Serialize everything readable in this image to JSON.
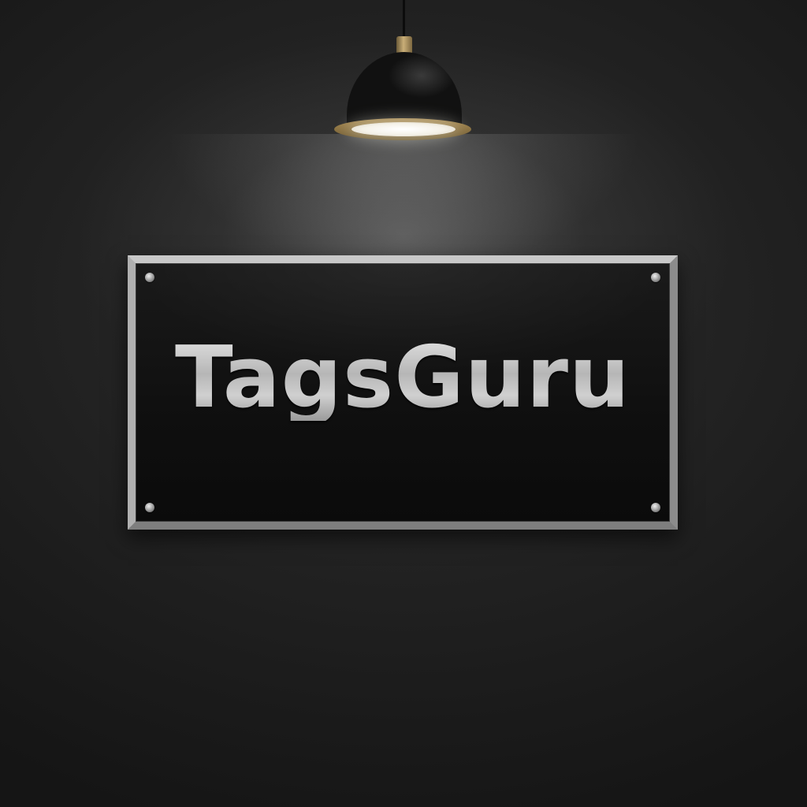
{
  "scene": {
    "plaque_text": "TagsGuru",
    "colors": {
      "wall": "#1f1f1f",
      "frame": "#9a9a9a",
      "plaque": "#0f0f0f",
      "lettering": "#c4c4c4",
      "lamp_rim": "#a88a52"
    }
  }
}
